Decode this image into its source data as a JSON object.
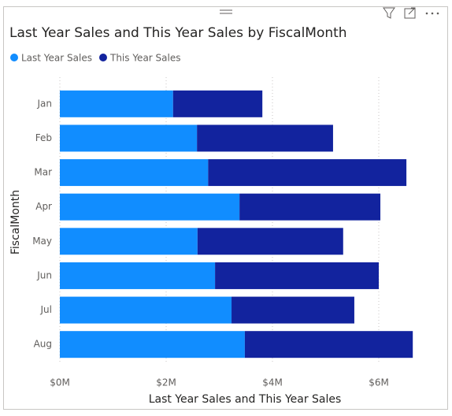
{
  "chart_data": {
    "type": "stacked-bar-horizontal",
    "title": "Last Year Sales and This Year Sales by FiscalMonth",
    "x_label": "Last Year Sales and This Year Sales",
    "y_label": "FiscalMonth",
    "categories": [
      "Jan",
      "Feb",
      "Mar",
      "Apr",
      "May",
      "Jun",
      "Jul",
      "Aug"
    ],
    "series": [
      {
        "name": "Last Year Sales",
        "color": "#118DFF",
        "values": [
          2.13,
          2.58,
          2.79,
          3.38,
          2.59,
          2.92,
          3.23,
          3.48
        ]
      },
      {
        "name": "This Year Sales",
        "color": "#12239E",
        "values": [
          1.68,
          2.56,
          3.73,
          2.65,
          2.74,
          3.08,
          2.31,
          3.16
        ]
      }
    ],
    "xlim": [
      0,
      6.9
    ],
    "xticks": [
      {
        "value": 0,
        "label": "$0M"
      },
      {
        "value": 2,
        "label": "$2M"
      },
      {
        "value": 4,
        "label": "$4M"
      },
      {
        "value": 6,
        "label": "$6M"
      }
    ],
    "grid": true
  }
}
